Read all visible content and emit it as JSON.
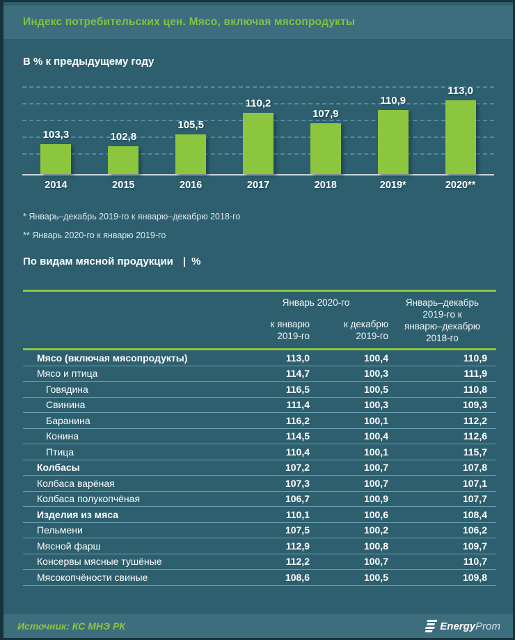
{
  "page": {
    "title": "Индекс потребительских цен. Мясо, включая мясопродукты",
    "colors": {
      "background": "#2D5F6E",
      "band": "#3D6E7D",
      "accent_green": "#8CC63F",
      "text": "#FFFFFF"
    }
  },
  "chart": {
    "title": "В % к предыдущему году",
    "footnotes": [
      "* Январь–декабрь 2019-го к январю–декабрю 2018-го",
      "** Январь 2020-го к январю 2019-го"
    ]
  },
  "chart_data": {
    "type": "bar",
    "title": "В % к предыдущему году",
    "categories": [
      "2014",
      "2015",
      "2016",
      "2017",
      "2018",
      "2019*",
      "2020**"
    ],
    "values": [
      103.3,
      102.8,
      105.5,
      110.2,
      107.9,
      110.9,
      113.0
    ],
    "value_labels": [
      "103,3",
      "102,8",
      "105,5",
      "110,2",
      "107,9",
      "110,9",
      "113,0"
    ],
    "xlabel": "",
    "ylabel": "% к предыдущему году",
    "ylim": [
      96.7,
      117
    ],
    "grid": "horizontal-dashed",
    "legend": "none",
    "bar_color": "#8CC63F"
  },
  "table": {
    "section_title": "По видам мясной  продукции",
    "section_divider": "|",
    "section_unit": "%",
    "col_group": "Январь 2020-го",
    "col_sub_1": "к январю\n2019-го",
    "col_sub_2": "к декабрю\n2019-го",
    "col_3": "Январь–декабрь\n2019-го к\nянварю–декабрю\n2018-го",
    "rows": [
      {
        "label": "Мясо (включая мясопродукты)",
        "bold": true,
        "indent": 0,
        "values": [
          "113,0",
          "100,4",
          "110,9"
        ]
      },
      {
        "label": "Мясо и птица",
        "bold": false,
        "indent": 0,
        "values": [
          "114,7",
          "100,3",
          "111,9"
        ]
      },
      {
        "label": "Говядина",
        "bold": false,
        "indent": 1,
        "values": [
          "116,5",
          "100,5",
          "110,8"
        ]
      },
      {
        "label": "Свинина",
        "bold": false,
        "indent": 1,
        "values": [
          "111,4",
          "100,3",
          "109,3"
        ]
      },
      {
        "label": "Баранина",
        "bold": false,
        "indent": 1,
        "values": [
          "116,2",
          "100,1",
          "112,2"
        ]
      },
      {
        "label": "Конина",
        "bold": false,
        "indent": 1,
        "values": [
          "114,5",
          "100,4",
          "112,6"
        ]
      },
      {
        "label": "Птица",
        "bold": false,
        "indent": 1,
        "values": [
          "110,4",
          "100,1",
          "115,7"
        ]
      },
      {
        "label": "Колбасы",
        "bold": true,
        "indent": 0,
        "values": [
          "107,2",
          "100,7",
          "107,8"
        ]
      },
      {
        "label": "Колбаса варёная",
        "bold": false,
        "indent": 0,
        "values": [
          "107,3",
          "100,7",
          "107,1"
        ]
      },
      {
        "label": "Колбаса полукопчёная",
        "bold": false,
        "indent": 0,
        "values": [
          "106,7",
          "100,9",
          "107,7"
        ]
      },
      {
        "label": "Изделия из мяса",
        "bold": true,
        "indent": 0,
        "values": [
          "110,1",
          "100,6",
          "108,4"
        ]
      },
      {
        "label": "Пельмени",
        "bold": false,
        "indent": 0,
        "values": [
          "107,5",
          "100,2",
          "106,2"
        ]
      },
      {
        "label": "Мясной  фарш",
        "bold": false,
        "indent": 0,
        "values": [
          "112,9",
          "100,8",
          "109,7"
        ]
      },
      {
        "label": "Консервы мясные тушёные",
        "bold": false,
        "indent": 0,
        "values": [
          "112,2",
          "100,7",
          "110,7"
        ]
      },
      {
        "label": "Мясокопчёности свиные",
        "bold": false,
        "indent": 0,
        "values": [
          "108,6",
          "100,5",
          "109,8"
        ]
      }
    ]
  },
  "footer": {
    "source": "Источник: КС МНЭ РК",
    "logo_bold": "Energy",
    "logo_light": "Prom"
  }
}
